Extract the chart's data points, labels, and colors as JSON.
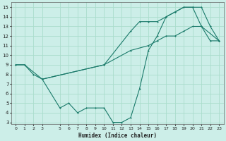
{
  "xlabel": "Humidex (Indice chaleur)",
  "bg_color": "#cceee8",
  "grid_color": "#aaddcc",
  "line_color": "#1a7a6a",
  "xlim": [
    -0.5,
    23.5
  ],
  "ylim": [
    2.8,
    15.5
  ],
  "yticks": [
    3,
    4,
    5,
    6,
    7,
    8,
    9,
    10,
    11,
    12,
    13,
    14,
    15
  ],
  "xticks": [
    0,
    1,
    2,
    3,
    5,
    6,
    7,
    8,
    9,
    10,
    11,
    12,
    13,
    14,
    15,
    16,
    17,
    18,
    19,
    20,
    21,
    22,
    23
  ],
  "line1_x": [
    0,
    1,
    2,
    3,
    5,
    6,
    7,
    8,
    9,
    10,
    11,
    12,
    13,
    14,
    15,
    16,
    17,
    18,
    19,
    20,
    21,
    22,
    23
  ],
  "line1_y": [
    9,
    9,
    8,
    7.5,
    4.5,
    5,
    4,
    4.5,
    4.5,
    4.5,
    3,
    3,
    3.5,
    6.5,
    10.5,
    12,
    14,
    14.5,
    15,
    15,
    13,
    11.5,
    11.5
  ],
  "line2_x": [
    0,
    1,
    3,
    10,
    13,
    14,
    15,
    16,
    17,
    18,
    19,
    20,
    21,
    22,
    23
  ],
  "line2_y": [
    9,
    9,
    7.5,
    9,
    12.5,
    13.5,
    13.5,
    13.5,
    14,
    14.5,
    15,
    15,
    15,
    13,
    11.5
  ],
  "line3_x": [
    3,
    10,
    13,
    15,
    16,
    17,
    18,
    19,
    20,
    21,
    23
  ],
  "line3_y": [
    7.5,
    9,
    10.5,
    11,
    11.5,
    12,
    12,
    12.5,
    13,
    13,
    11.5
  ]
}
